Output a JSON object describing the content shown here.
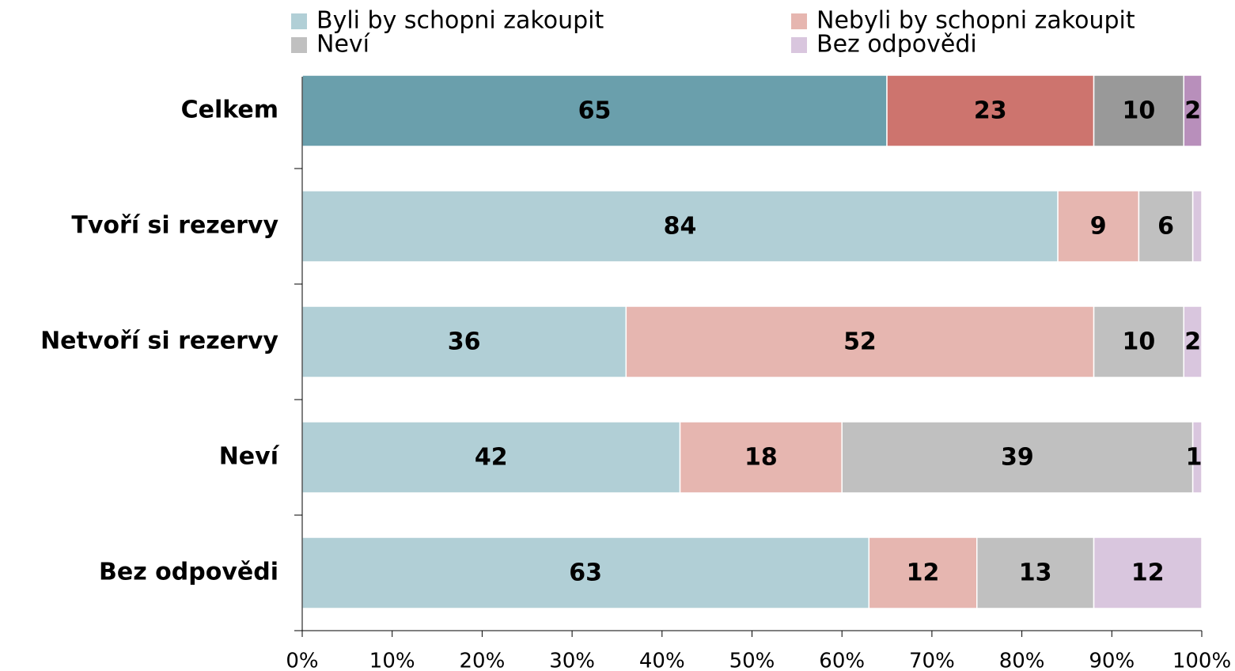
{
  "chart_data": {
    "type": "stacked-bar-horizontal",
    "categories": [
      "Celkem",
      "Tvoří si rezervy",
      "Netvoří si rezervy",
      "Neví",
      "Bez odpovědi"
    ],
    "series": [
      {
        "name": "Byli by schopni zakoupit",
        "color": "#b1cfd6",
        "colors": [
          "#6a9fac",
          "#b1cfd6",
          "#b1cfd6",
          "#b1cfd6",
          "#b1cfd6"
        ],
        "values": [
          65,
          84,
          36,
          42,
          63
        ]
      },
      {
        "name": "Nebyli by schopni zakoupit",
        "color": "#e6b6b0",
        "colors": [
          "#cd746e",
          "#e6b6b0",
          "#e6b6b0",
          "#e6b6b0",
          "#e6b6b0"
        ],
        "values": [
          23,
          9,
          52,
          18,
          12
        ]
      },
      {
        "name": "Neví",
        "color": "#c0c0c0",
        "colors": [
          "#999999",
          "#c0c0c0",
          "#c0c0c0",
          "#c0c0c0",
          "#c0c0c0"
        ],
        "values": [
          10,
          6,
          10,
          39,
          13
        ]
      },
      {
        "name": "Bez odpovědi",
        "color": "#d9c6de",
        "colors": [
          "#b88fbb",
          "#d9c6de",
          "#d9c6de",
          "#d9c6de",
          "#d9c6de"
        ],
        "values": [
          2,
          1,
          2,
          1,
          12
        ],
        "value_labels": [
          2,
          null,
          2,
          1,
          12
        ]
      }
    ],
    "xlim": [
      0,
      100
    ],
    "xticks": [
      {
        "value": 0,
        "label": "0%"
      },
      {
        "value": 10,
        "label": "10%"
      },
      {
        "value": 20,
        "label": "20%"
      },
      {
        "value": 30,
        "label": "30%"
      },
      {
        "value": 40,
        "label": "40%"
      },
      {
        "value": 50,
        "label": "50%"
      },
      {
        "value": 60,
        "label": "60%"
      },
      {
        "value": 70,
        "label": "70%"
      },
      {
        "value": 80,
        "label": "80%"
      },
      {
        "value": 90,
        "label": "90%"
      },
      {
        "value": 100,
        "label": "100%"
      }
    ],
    "legend": "top"
  }
}
